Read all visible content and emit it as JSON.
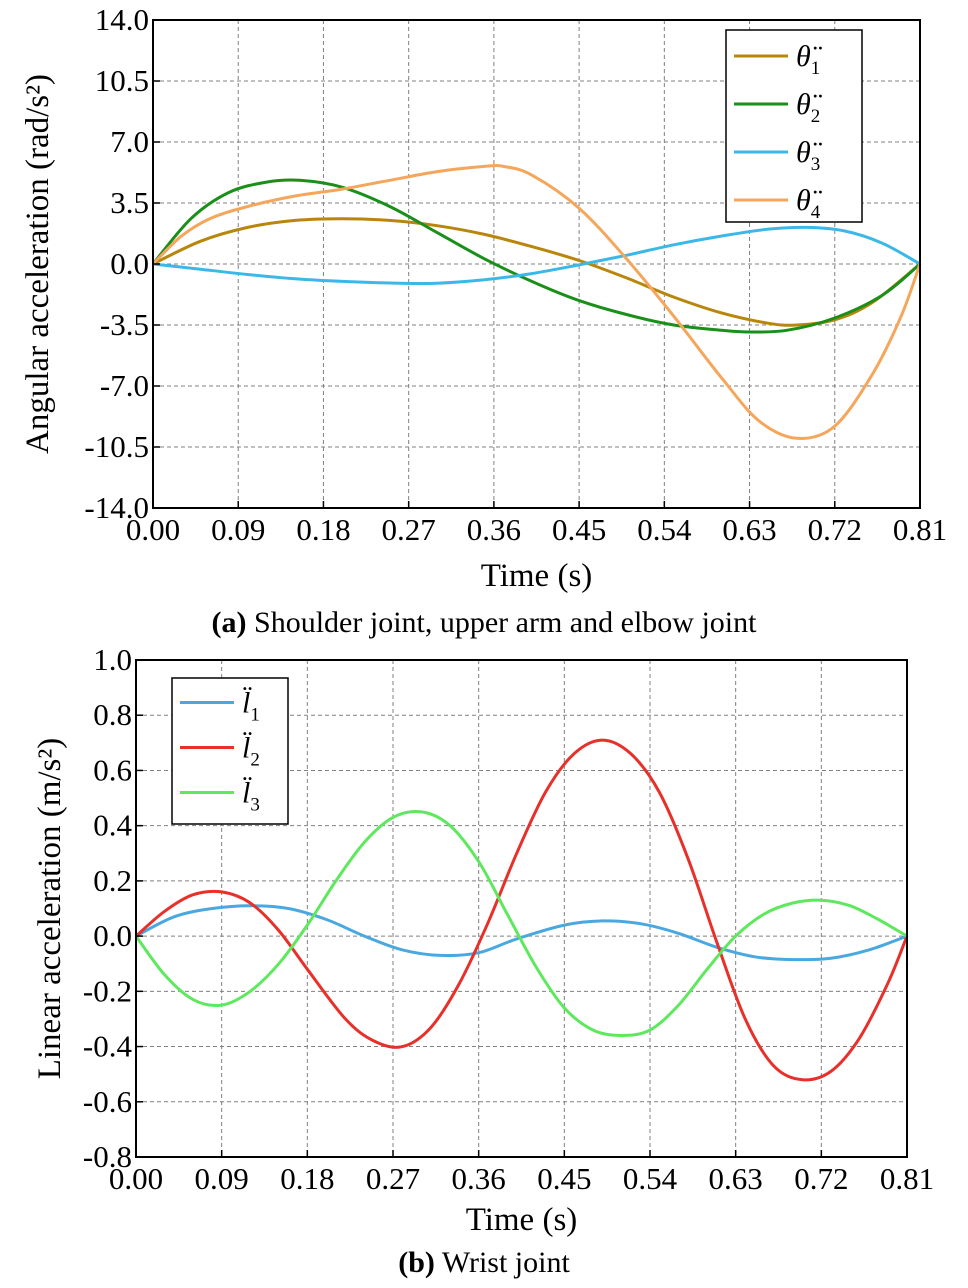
{
  "chart_data": [
    {
      "type": "line",
      "caption_label": "(a)",
      "caption_text": " Shoulder joint, upper arm and elbow joint",
      "xlabel": "Time (s)",
      "ylabel": "Angular acceleration (rad/s²)",
      "xlim": [
        0,
        0.81
      ],
      "ylim": [
        -14,
        14
      ],
      "x_ticks": [
        "0.00",
        "0.09",
        "0.18",
        "0.27",
        "0.36",
        "0.45",
        "0.54",
        "0.63",
        "0.72",
        "0.81"
      ],
      "y_ticks": [
        "14.0",
        "10.5",
        "7.0",
        "3.5",
        "0.0",
        "-3.5",
        "-7.0",
        "-10.5",
        "-14.0"
      ],
      "grid": true,
      "legend_position": "top-right",
      "series": [
        {
          "name": "θ̈",
          "sub": "1",
          "color": "#b8860b",
          "x": [
            0,
            0.05,
            0.1,
            0.15,
            0.2,
            0.25,
            0.3,
            0.35,
            0.4,
            0.45,
            0.5,
            0.55,
            0.6,
            0.65,
            0.68,
            0.72,
            0.76,
            0.81
          ],
          "y": [
            0,
            1.3,
            2.1,
            2.5,
            2.6,
            2.5,
            2.2,
            1.7,
            1.0,
            0.2,
            -0.8,
            -1.9,
            -2.8,
            -3.4,
            -3.5,
            -3.2,
            -2.2,
            0
          ]
        },
        {
          "name": "θ̈",
          "sub": "2",
          "color": "#1a8f1a",
          "x": [
            0,
            0.04,
            0.08,
            0.12,
            0.155,
            0.2,
            0.25,
            0.3,
            0.35,
            0.4,
            0.45,
            0.5,
            0.55,
            0.6,
            0.63,
            0.67,
            0.72,
            0.77,
            0.81
          ],
          "y": [
            0,
            2.6,
            4.1,
            4.7,
            4.8,
            4.4,
            3.3,
            1.8,
            0.3,
            -1.0,
            -2.1,
            -2.9,
            -3.5,
            -3.8,
            -3.9,
            -3.8,
            -3.1,
            -1.8,
            0
          ]
        },
        {
          "name": "θ̈",
          "sub": "3",
          "color": "#3cb8e8",
          "x": [
            0,
            0.05,
            0.1,
            0.15,
            0.2,
            0.26,
            0.3,
            0.35,
            0.4,
            0.45,
            0.5,
            0.55,
            0.6,
            0.65,
            0.69,
            0.73,
            0.77,
            0.81
          ],
          "y": [
            0,
            -0.3,
            -0.6,
            -0.85,
            -1.0,
            -1.1,
            -1.1,
            -0.9,
            -0.55,
            -0.05,
            0.5,
            1.1,
            1.6,
            2.0,
            2.1,
            1.9,
            1.2,
            0
          ]
        },
        {
          "name": "θ̈",
          "sub": "4",
          "color": "#f5a65b",
          "x": [
            0,
            0.03,
            0.06,
            0.1,
            0.15,
            0.2,
            0.25,
            0.3,
            0.35,
            0.37,
            0.4,
            0.45,
            0.5,
            0.55,
            0.6,
            0.64,
            0.68,
            0.72,
            0.76,
            0.79,
            0.81
          ],
          "y": [
            0,
            1.6,
            2.6,
            3.3,
            3.9,
            4.3,
            4.8,
            5.3,
            5.6,
            5.6,
            5.1,
            3.2,
            0.3,
            -3.0,
            -6.5,
            -9.0,
            -10.0,
            -9.3,
            -6.3,
            -3.0,
            0
          ]
        }
      ]
    },
    {
      "type": "line",
      "caption_label": "(b)",
      "caption_text": " Wrist joint",
      "xlabel": "Time (s)",
      "ylabel": "Linear acceleration (m/s²)",
      "xlim": [
        0,
        0.81
      ],
      "ylim": [
        -0.8,
        1.0
      ],
      "x_ticks": [
        "0.00",
        "0.09",
        "0.18",
        "0.27",
        "0.36",
        "0.45",
        "0.54",
        "0.63",
        "0.72",
        "0.81"
      ],
      "y_ticks": [
        "1.0",
        "0.8",
        "0.6",
        "0.4",
        "0.2",
        "0.0",
        "-0.2",
        "-0.4",
        "-0.6",
        "-0.8"
      ],
      "grid": true,
      "legend_position": "top-left",
      "series": [
        {
          "name": "l̈",
          "sub": "1",
          "color": "#4aa8e0",
          "x": [
            0,
            0.04,
            0.08,
            0.12,
            0.16,
            0.2,
            0.24,
            0.28,
            0.32,
            0.36,
            0.4,
            0.45,
            0.49,
            0.53,
            0.57,
            0.61,
            0.65,
            0.69,
            0.73,
            0.77,
            0.81
          ],
          "y": [
            0,
            0.07,
            0.1,
            0.11,
            0.1,
            0.06,
            0.0,
            -0.05,
            -0.07,
            -0.06,
            -0.01,
            0.04,
            0.055,
            0.045,
            0.01,
            -0.04,
            -0.075,
            -0.085,
            -0.08,
            -0.05,
            0
          ]
        },
        {
          "name": "l̈",
          "sub": "2",
          "color": "#e8302a",
          "x": [
            0,
            0.03,
            0.06,
            0.09,
            0.12,
            0.15,
            0.18,
            0.22,
            0.25,
            0.28,
            0.31,
            0.34,
            0.37,
            0.4,
            0.43,
            0.46,
            0.49,
            0.52,
            0.55,
            0.58,
            0.61,
            0.64,
            0.67,
            0.7,
            0.73,
            0.76,
            0.79,
            0.81
          ],
          "y": [
            0,
            0.09,
            0.15,
            0.16,
            0.12,
            0.02,
            -0.12,
            -0.3,
            -0.38,
            -0.4,
            -0.33,
            -0.17,
            0.05,
            0.3,
            0.52,
            0.66,
            0.71,
            0.66,
            0.52,
            0.28,
            -0.02,
            -0.3,
            -0.47,
            -0.52,
            -0.49,
            -0.37,
            -0.17,
            0
          ]
        },
        {
          "name": "l̈",
          "sub": "3",
          "color": "#5ee85e",
          "x": [
            0,
            0.03,
            0.06,
            0.09,
            0.12,
            0.15,
            0.18,
            0.21,
            0.24,
            0.27,
            0.3,
            0.33,
            0.36,
            0.39,
            0.42,
            0.45,
            0.48,
            0.51,
            0.54,
            0.57,
            0.6,
            0.63,
            0.66,
            0.69,
            0.72,
            0.75,
            0.78,
            0.81
          ],
          "y": [
            0,
            -0.14,
            -0.23,
            -0.25,
            -0.2,
            -0.1,
            0.04,
            0.2,
            0.34,
            0.43,
            0.45,
            0.4,
            0.27,
            0.08,
            -0.11,
            -0.26,
            -0.34,
            -0.36,
            -0.34,
            -0.25,
            -0.12,
            0.0,
            0.08,
            0.12,
            0.13,
            0.11,
            0.06,
            0
          ]
        }
      ]
    }
  ]
}
